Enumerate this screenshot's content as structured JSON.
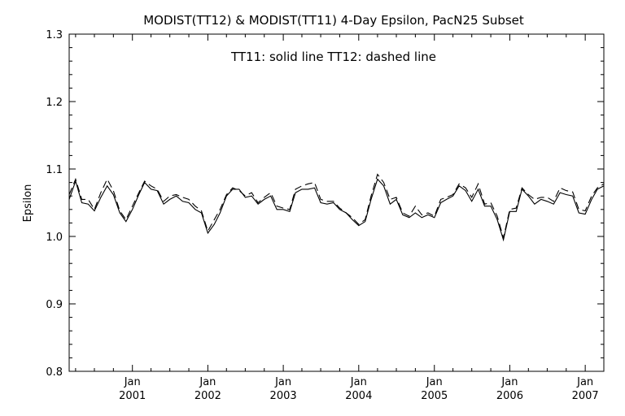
{
  "chart_data": {
    "type": "line",
    "title": "MODIST(TT12) & MODIST(TT11) 4-Day Epsilon, PacN25 Subset",
    "annotation": "TT11: solid line   TT12: dashed line",
    "ylabel": "Epsilon",
    "xlabel": "",
    "xlim": [
      "2000-03-01",
      "2007-04-01"
    ],
    "ylim": [
      0.8,
      1.3
    ],
    "y_ticks": [
      "0.8",
      "0.9",
      "1.0",
      "1.1",
      "1.2",
      "1.3"
    ],
    "x_ticks": [
      {
        "date": "2001-01-01",
        "month": "Jan",
        "year": "2001"
      },
      {
        "date": "2002-01-01",
        "month": "Jan",
        "year": "2002"
      },
      {
        "date": "2003-01-01",
        "month": "Jan",
        "year": "2003"
      },
      {
        "date": "2004-01-01",
        "month": "Jan",
        "year": "2004"
      },
      {
        "date": "2005-01-01",
        "month": "Jan",
        "year": "2005"
      },
      {
        "date": "2006-01-01",
        "month": "Jan",
        "year": "2006"
      },
      {
        "date": "2007-01-01",
        "month": "Jan",
        "year": "2007"
      }
    ],
    "grid": false,
    "series": [
      {
        "name": "TT11",
        "style": "solid",
        "x": [
          "2000-03-01",
          "2000-04-01",
          "2000-05-01",
          "2000-06-01",
          "2000-07-01",
          "2000-08-01",
          "2000-09-01",
          "2000-10-01",
          "2000-11-01",
          "2000-12-01",
          "2001-01-01",
          "2001-02-01",
          "2001-03-01",
          "2001-04-01",
          "2001-05-01",
          "2001-06-01",
          "2001-07-01",
          "2001-08-01",
          "2001-09-01",
          "2001-10-01",
          "2001-11-01",
          "2001-12-01",
          "2002-01-01",
          "2002-02-01",
          "2002-03-01",
          "2002-04-01",
          "2002-05-01",
          "2002-06-01",
          "2002-07-01",
          "2002-08-01",
          "2002-09-01",
          "2002-10-01",
          "2002-11-01",
          "2002-12-01",
          "2003-01-01",
          "2003-02-01",
          "2003-03-01",
          "2003-04-01",
          "2003-05-01",
          "2003-06-01",
          "2003-07-01",
          "2003-08-01",
          "2003-09-01",
          "2003-10-01",
          "2003-11-01",
          "2003-12-01",
          "2004-01-01",
          "2004-02-01",
          "2004-03-01",
          "2004-04-01",
          "2004-05-01",
          "2004-06-01",
          "2004-07-01",
          "2004-08-01",
          "2004-09-01",
          "2004-10-01",
          "2004-11-01",
          "2004-12-01",
          "2005-01-01",
          "2005-02-01",
          "2005-03-01",
          "2005-04-01",
          "2005-05-01",
          "2005-06-01",
          "2005-07-01",
          "2005-08-01",
          "2005-09-01",
          "2005-10-01",
          "2005-11-01",
          "2005-12-01",
          "2006-01-01",
          "2006-02-01",
          "2006-03-01",
          "2006-04-01",
          "2006-05-01",
          "2006-06-01",
          "2006-07-01",
          "2006-08-01",
          "2006-09-01",
          "2006-10-01",
          "2006-11-01",
          "2006-12-01",
          "2007-01-01",
          "2007-02-01",
          "2007-03-01",
          "2007-04-01"
        ],
        "y": [
          1.055,
          1.082,
          1.05,
          1.048,
          1.038,
          1.058,
          1.075,
          1.062,
          1.035,
          1.022,
          1.04,
          1.062,
          1.08,
          1.07,
          1.068,
          1.048,
          1.055,
          1.06,
          1.052,
          1.05,
          1.04,
          1.035,
          1.005,
          1.018,
          1.035,
          1.06,
          1.07,
          1.07,
          1.058,
          1.06,
          1.048,
          1.055,
          1.06,
          1.04,
          1.04,
          1.037,
          1.065,
          1.07,
          1.07,
          1.072,
          1.05,
          1.048,
          1.05,
          1.04,
          1.035,
          1.025,
          1.016,
          1.022,
          1.055,
          1.085,
          1.075,
          1.048,
          1.055,
          1.032,
          1.028,
          1.035,
          1.028,
          1.032,
          1.028,
          1.05,
          1.055,
          1.06,
          1.075,
          1.068,
          1.052,
          1.07,
          1.045,
          1.045,
          1.025,
          0.995,
          1.037,
          1.037,
          1.07,
          1.06,
          1.048,
          1.055,
          1.052,
          1.048,
          1.065,
          1.062,
          1.06,
          1.035,
          1.033,
          1.055,
          1.07,
          1.075
        ]
      },
      {
        "name": "TT12",
        "style": "dashed",
        "x": [
          "2000-03-01",
          "2000-04-01",
          "2000-05-01",
          "2000-06-01",
          "2000-07-01",
          "2000-08-01",
          "2000-09-01",
          "2000-10-01",
          "2000-11-01",
          "2000-12-01",
          "2001-01-01",
          "2001-02-01",
          "2001-03-01",
          "2001-04-01",
          "2001-05-01",
          "2001-06-01",
          "2001-07-01",
          "2001-08-01",
          "2001-09-01",
          "2001-10-01",
          "2001-11-01",
          "2001-12-01",
          "2002-01-01",
          "2002-02-01",
          "2002-03-01",
          "2002-04-01",
          "2002-05-01",
          "2002-06-01",
          "2002-07-01",
          "2002-08-01",
          "2002-09-01",
          "2002-10-01",
          "2002-11-01",
          "2002-12-01",
          "2003-01-01",
          "2003-02-01",
          "2003-03-01",
          "2003-04-01",
          "2003-05-01",
          "2003-06-01",
          "2003-07-01",
          "2003-08-01",
          "2003-09-01",
          "2003-10-01",
          "2003-11-01",
          "2003-12-01",
          "2004-01-01",
          "2004-02-01",
          "2004-03-01",
          "2004-04-01",
          "2004-05-01",
          "2004-06-01",
          "2004-07-01",
          "2004-08-01",
          "2004-09-01",
          "2004-10-01",
          "2004-11-01",
          "2004-12-01",
          "2005-01-01",
          "2005-02-01",
          "2005-03-01",
          "2005-04-01",
          "2005-05-01",
          "2005-06-01",
          "2005-07-01",
          "2005-08-01",
          "2005-09-01",
          "2005-10-01",
          "2005-11-01",
          "2005-12-01",
          "2006-01-01",
          "2006-02-01",
          "2006-03-01",
          "2006-04-01",
          "2006-05-01",
          "2006-06-01",
          "2006-07-01",
          "2006-08-01",
          "2006-09-01",
          "2006-10-01",
          "2006-11-01",
          "2006-12-01",
          "2007-01-01",
          "2007-02-01",
          "2007-03-01",
          "2007-04-01"
        ],
        "y": [
          1.062,
          1.085,
          1.055,
          1.055,
          1.04,
          1.065,
          1.085,
          1.068,
          1.038,
          1.025,
          1.045,
          1.065,
          1.082,
          1.075,
          1.07,
          1.052,
          1.06,
          1.062,
          1.058,
          1.055,
          1.045,
          1.038,
          1.008,
          1.025,
          1.04,
          1.062,
          1.072,
          1.068,
          1.06,
          1.065,
          1.05,
          1.058,
          1.065,
          1.045,
          1.042,
          1.04,
          1.07,
          1.075,
          1.078,
          1.08,
          1.055,
          1.052,
          1.052,
          1.042,
          1.035,
          1.028,
          1.018,
          1.025,
          1.06,
          1.092,
          1.08,
          1.055,
          1.058,
          1.035,
          1.03,
          1.045,
          1.032,
          1.035,
          1.03,
          1.055,
          1.058,
          1.062,
          1.078,
          1.072,
          1.058,
          1.078,
          1.048,
          1.05,
          1.03,
          0.998,
          1.04,
          1.042,
          1.072,
          1.062,
          1.055,
          1.058,
          1.058,
          1.052,
          1.072,
          1.068,
          1.066,
          1.04,
          1.038,
          1.06,
          1.072,
          1.078
        ]
      }
    ]
  }
}
